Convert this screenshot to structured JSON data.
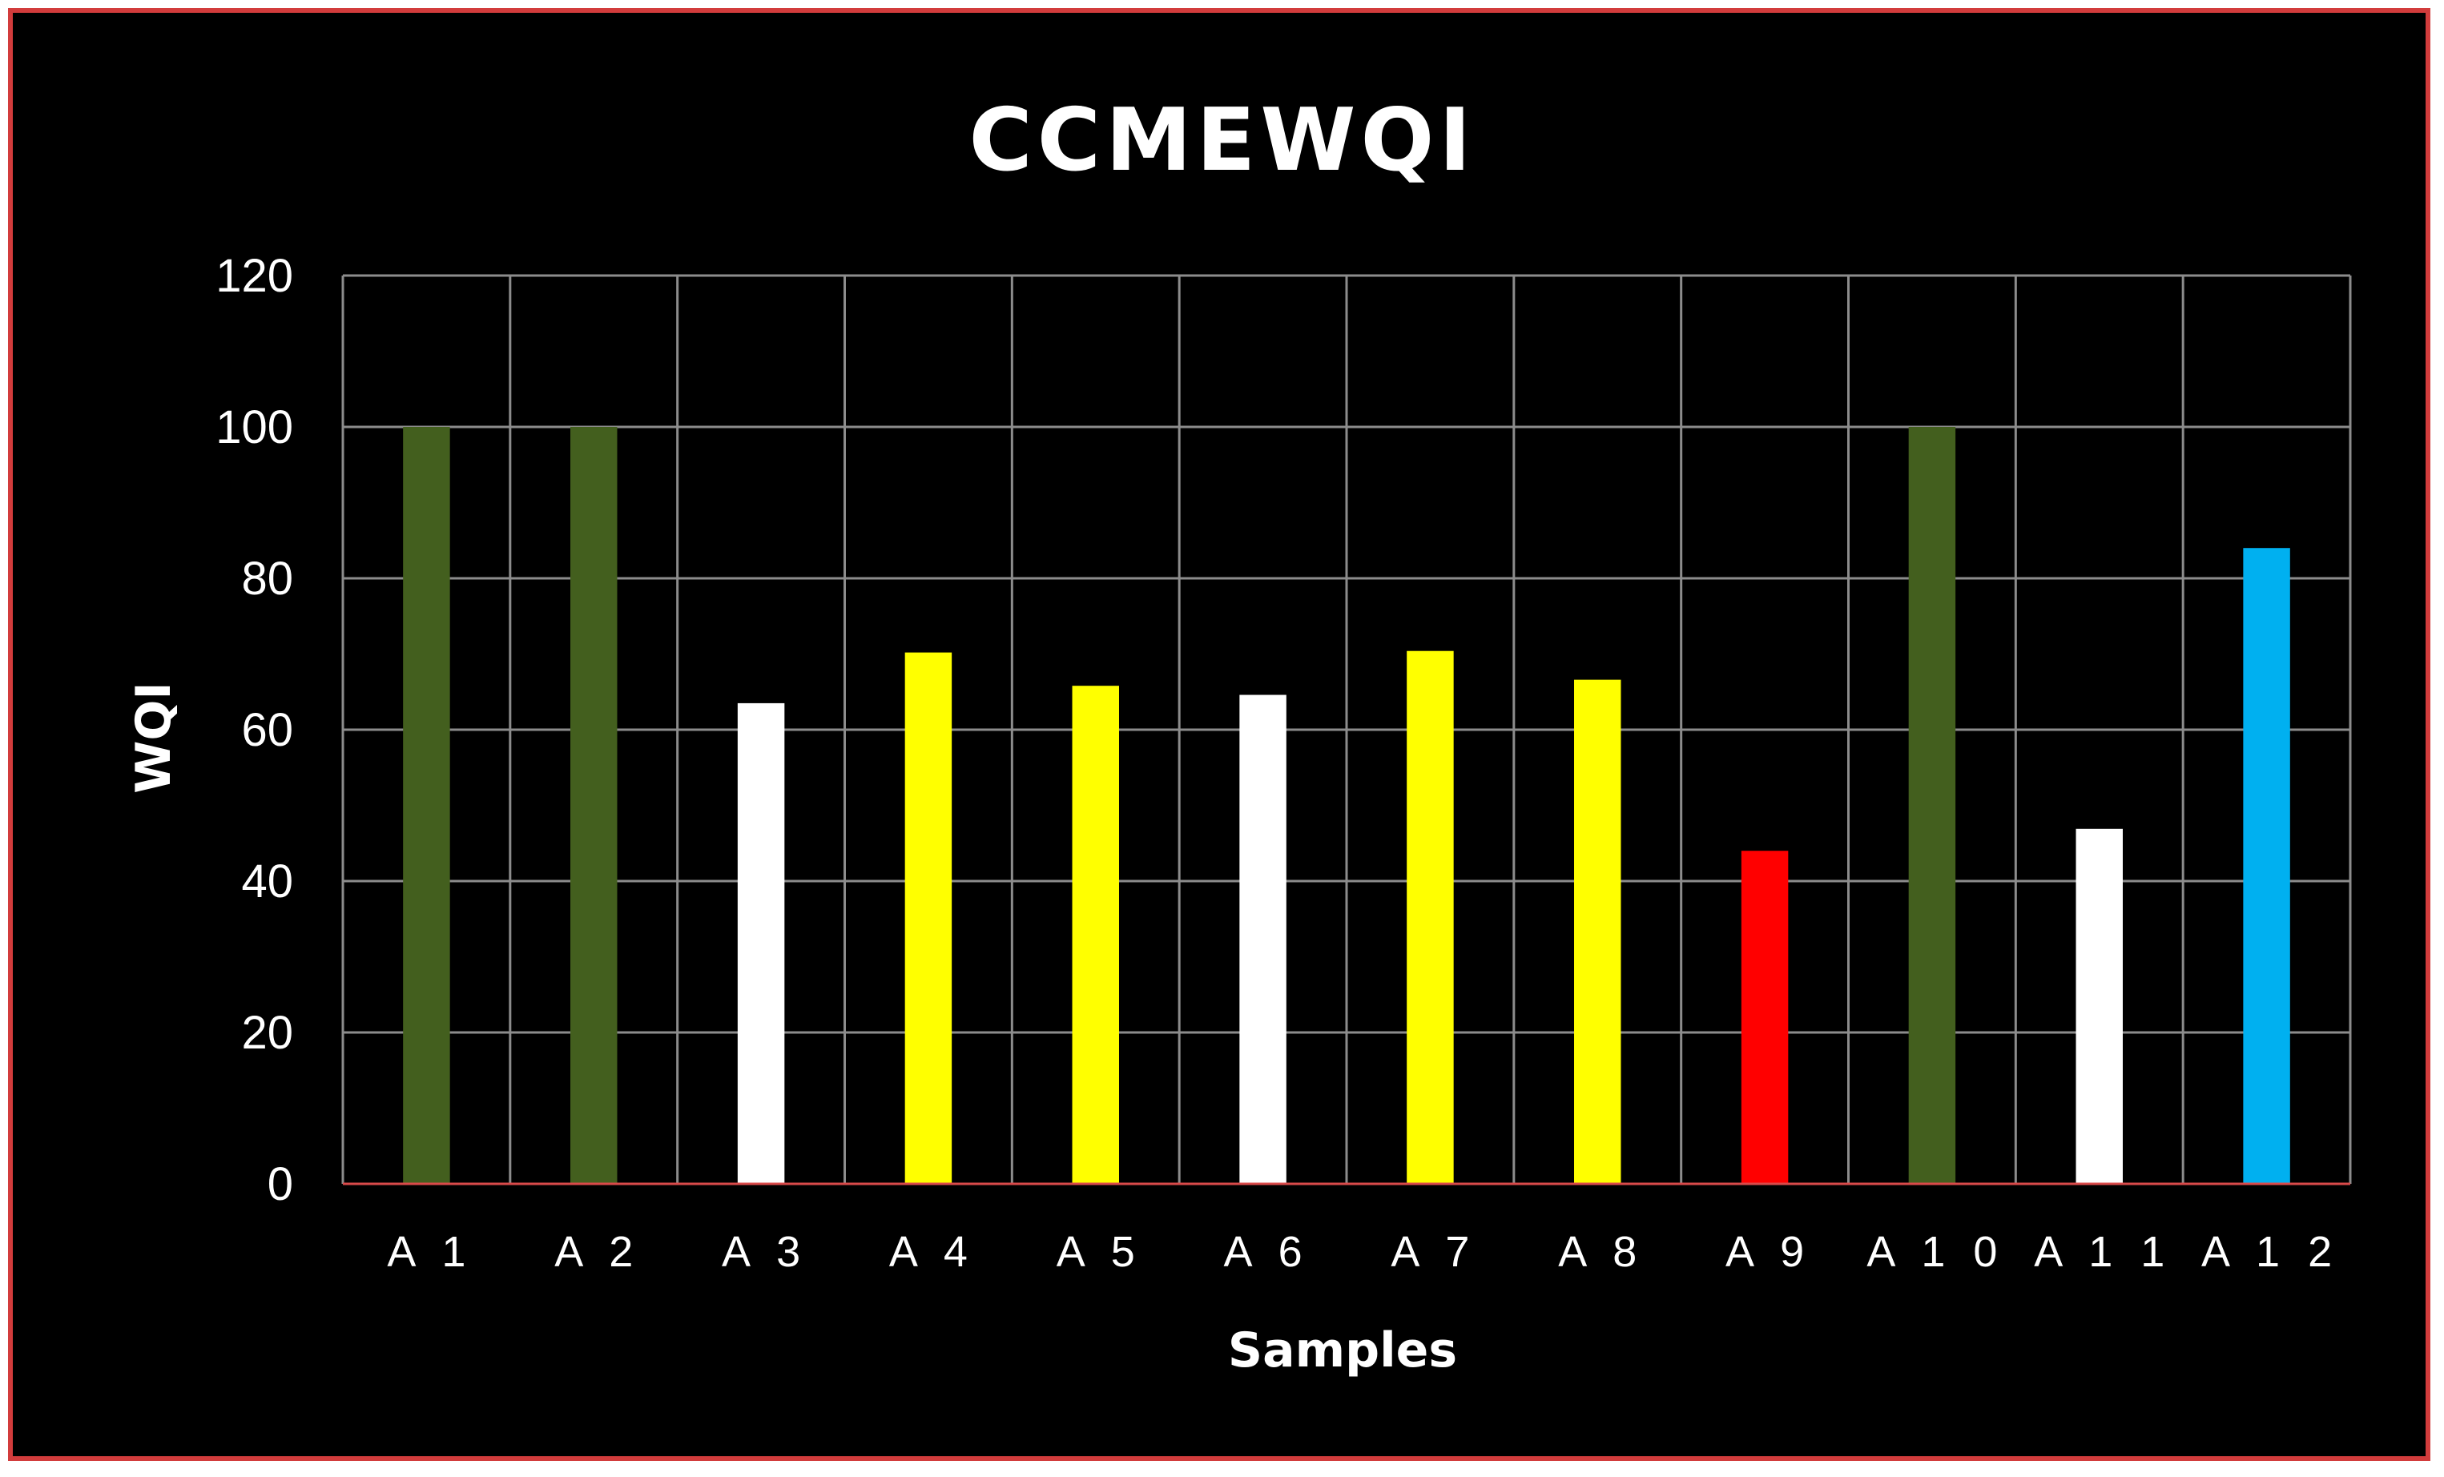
{
  "chart_data": {
    "type": "bar",
    "title": "CCMEWQI",
    "xlabel": "Samples",
    "ylabel": "WQI",
    "ylim": [
      0,
      120
    ],
    "yticks": [
      0,
      20,
      40,
      60,
      80,
      100,
      120
    ],
    "grid": true,
    "categories": [
      "A 1",
      "A 2",
      "A 3",
      "A 4",
      "A 5",
      "A 6",
      "A 7",
      "A 8",
      "A 9",
      "A 1 0",
      "A 1 1",
      "A 1 2"
    ],
    "values": [
      100,
      100,
      63.5,
      70.2,
      65.8,
      64.6,
      70.4,
      66.6,
      44,
      100,
      46.9,
      84
    ],
    "colors": [
      "#435f1e",
      "#435f1e",
      "#ffffff",
      "#ffff00",
      "#ffff00",
      "#ffffff",
      "#ffff00",
      "#ffff00",
      "#ff0000",
      "#435f1e",
      "#ffffff",
      "#00b0f0"
    ],
    "baseline_color": "#d94a4a"
  }
}
